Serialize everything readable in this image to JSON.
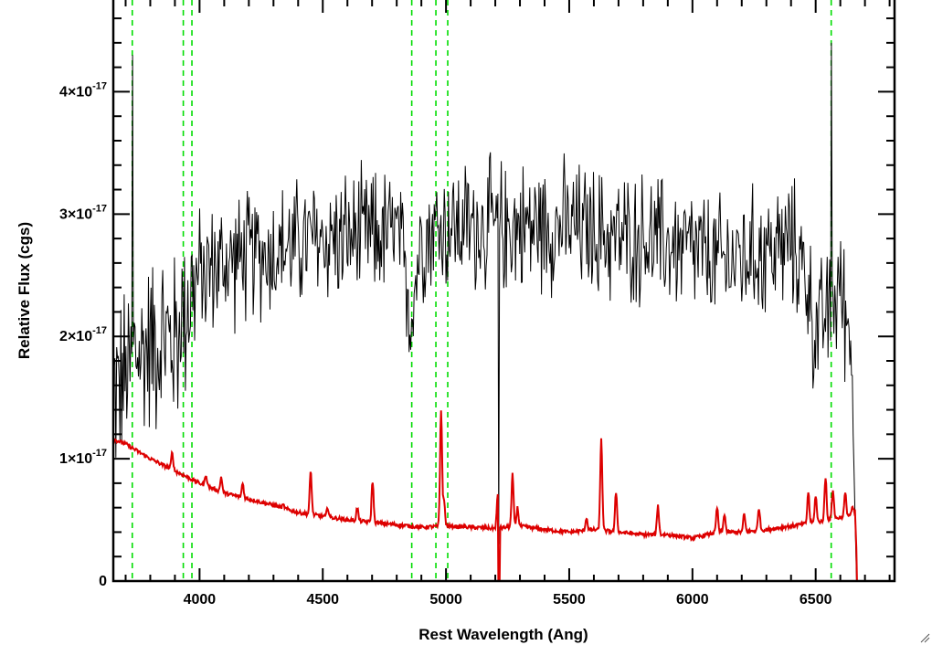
{
  "chart_data": {
    "type": "line",
    "title": "",
    "xlabel": "Rest Wavelength (Ang)",
    "ylabel": "Relative Flux (cgs)",
    "xlim": [
      3650,
      6820
    ],
    "ylim": [
      0,
      4.75e-17
    ],
    "x_ticks": [
      4000,
      4500,
      5000,
      5500,
      6000,
      6500
    ],
    "y_ticks": [
      {
        "value": 0,
        "mantissa": "0",
        "exponent": ""
      },
      {
        "value": 1e-17,
        "mantissa": "1×10",
        "exponent": "-17"
      },
      {
        "value": 2e-17,
        "mantissa": "2×10",
        "exponent": "-17"
      },
      {
        "value": 3e-17,
        "mantissa": "3×10",
        "exponent": "-17"
      },
      {
        "value": 4e-17,
        "mantissa": "4×10",
        "exponent": "-17"
      }
    ],
    "colors": {
      "spectrum": "#000000",
      "model": "#dd0000",
      "markers": "#00dd00"
    },
    "reference_lines": [
      3727,
      3934,
      3969,
      4861,
      4959,
      5007,
      6563
    ],
    "series": [
      {
        "color": "#000000",
        "description_points": {
          "x": [
            3650,
            3680,
            3700,
            3720,
            3727,
            3735,
            3760,
            3800,
            3850,
            3900,
            3950,
            4000,
            4100,
            4200,
            4300,
            4400,
            4500,
            4600,
            4700,
            4800,
            4861,
            4900,
            5000,
            5100,
            5200,
            5215,
            5300,
            5400,
            5500,
            5600,
            5700,
            5800,
            5900,
            6000,
            6100,
            6200,
            6300,
            6400,
            6450,
            6500,
            6563,
            6600,
            6650,
            6670
          ],
          "y": [
            1.55e-17,
            1.6e-17,
            1.65e-17,
            1.75e-17,
            4.3e-17,
            1.9e-17,
            1.85e-17,
            1.95e-17,
            2e-17,
            1.95e-17,
            2.3e-17,
            2.5e-17,
            2.6e-17,
            2.65e-17,
            2.7e-17,
            2.75e-17,
            2.8e-17,
            2.8e-17,
            2.82e-17,
            2.85e-17,
            2.2e-17,
            2.85e-17,
            2.9e-17,
            2.9e-17,
            2.9e-17,
            3e-18,
            2.9e-17,
            2.9e-17,
            2.9e-17,
            2.85e-17,
            2.8e-17,
            2.8e-17,
            2.75e-17,
            2.7e-17,
            2.6e-17,
            2.65e-17,
            2.7e-17,
            2.75e-17,
            2.6e-17,
            2e-17,
            4.4e-17,
            2.4e-17,
            1.9e-17,
            0.0
          ]
        }
      },
      {
        "color": "#dd0000",
        "continuum": {
          "x": [
            3650,
            3700,
            3800,
            3900,
            4000,
            4100,
            4200,
            4300,
            4400,
            4500,
            4600,
            4700,
            4800,
            4900,
            5000,
            5100,
            5200,
            5300,
            5400,
            5500,
            5600,
            5700,
            5800,
            5900,
            6000,
            6100,
            6200,
            6300,
            6400,
            6500,
            6600,
            6660,
            6670,
            6820
          ],
          "y": [
            1.16e-17,
            1.12e-17,
            1e-17,
            9e-18,
            8e-18,
            7.2e-18,
            6.7e-18,
            6.2e-18,
            5.6e-18,
            5.3e-18,
            5e-18,
            4.8e-18,
            4.6e-18,
            4.4e-18,
            4.5e-18,
            4.4e-18,
            4.3e-18,
            4.5e-18,
            4.2e-18,
            4e-18,
            4.2e-18,
            4e-18,
            3.8e-18,
            3.8e-18,
            3.5e-18,
            4e-18,
            4e-18,
            4.2e-18,
            4.5e-18,
            4.8e-18,
            5.2e-18,
            5.5e-18,
            0.0,
            0.0
          ]
        },
        "emission_lines": [
          {
            "x": 3889,
            "peak": 1.05e-17
          },
          {
            "x": 4026,
            "peak": 8.7e-18
          },
          {
            "x": 4088,
            "peak": 8.5e-18
          },
          {
            "x": 4175,
            "peak": 8e-18
          },
          {
            "x": 4340,
            "peak": 6.2e-18
          },
          {
            "x": 4451,
            "peak": 9e-18
          },
          {
            "x": 4520,
            "peak": 6e-18
          },
          {
            "x": 4640,
            "peak": 6e-18
          },
          {
            "x": 4702,
            "peak": 8.2e-18
          },
          {
            "x": 4980,
            "peak": 1.4e-17
          },
          {
            "x": 4992,
            "peak": 6.5e-18
          },
          {
            "x": 5210,
            "peak": 7e-18
          },
          {
            "x": 5270,
            "peak": 8.7e-18
          },
          {
            "x": 5290,
            "peak": 6e-18
          },
          {
            "x": 5570,
            "peak": 5.2e-18
          },
          {
            "x": 5630,
            "peak": 1.17e-17
          },
          {
            "x": 5690,
            "peak": 7.3e-18
          },
          {
            "x": 5860,
            "peak": 6.2e-18
          },
          {
            "x": 6100,
            "peak": 6e-18
          },
          {
            "x": 6130,
            "peak": 5.5e-18
          },
          {
            "x": 6210,
            "peak": 5.5e-18
          },
          {
            "x": 6270,
            "peak": 6e-18
          },
          {
            "x": 6470,
            "peak": 7.3e-18
          },
          {
            "x": 6500,
            "peak": 7e-18
          },
          {
            "x": 6540,
            "peak": 8.5e-18
          },
          {
            "x": 6570,
            "peak": 7.5e-18
          },
          {
            "x": 6620,
            "peak": 7.2e-18
          },
          {
            "x": 6650,
            "peak": 6e-18
          }
        ],
        "dip": {
          "x": 5215,
          "y": 0.0
        }
      }
    ],
    "grid": false,
    "legend": "none"
  }
}
